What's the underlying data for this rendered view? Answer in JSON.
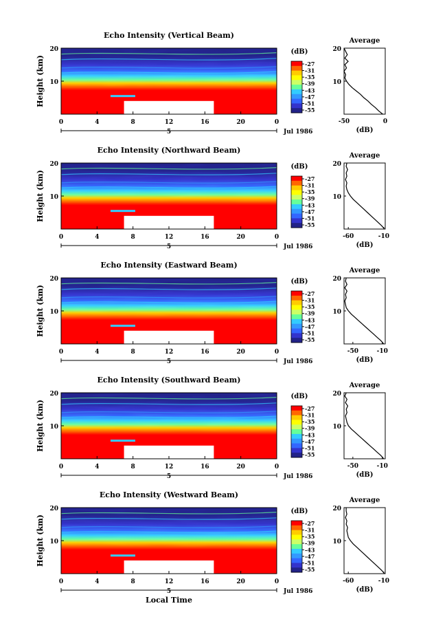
{
  "chart_data": [
    {
      "type": "heatmap",
      "title": "Echo Intensity (Vertical Beam)",
      "ylabel": "Height (km)",
      "ylim": [
        0,
        20
      ],
      "yticks": [
        0,
        10,
        20
      ],
      "xlim": [
        0,
        24
      ],
      "xticks": [
        "0",
        "4",
        "8",
        "12",
        "16",
        "20",
        "0"
      ],
      "date_tick": "5",
      "date_label": "Jul 1986",
      "colorbar": {
        "unit": "(dB)",
        "ticks": [
          "-27",
          "-31",
          "-35",
          "-39",
          "-43",
          "-47",
          "-51",
          "-55"
        ],
        "colors": [
          "#ff0000",
          "#ff6600",
          "#ffcc00",
          "#ffff00",
          "#ccff66",
          "#66ff99",
          "#33ccff",
          "#3399ff",
          "#3366ff",
          "#3333cc",
          "#222288"
        ]
      },
      "data_gap": {
        "x": [
          7,
          17
        ],
        "y": [
          0,
          4
        ]
      },
      "profile": {
        "title": "Average",
        "xlabel": "(dB)",
        "xticks": [
          "-50",
          "0"
        ],
        "yticks": [
          "0",
          "10",
          "20"
        ],
        "xlim": [
          -50,
          0
        ],
        "heights": [
          0,
          1,
          2,
          3,
          4,
          5,
          6,
          7,
          8,
          9,
          10,
          11,
          12,
          13,
          14,
          15,
          16,
          17,
          18,
          19,
          20
        ],
        "values": [
          -3,
          -8,
          -12,
          -17,
          -21,
          -26,
          -30,
          -35,
          -40,
          -44,
          -47,
          -49,
          -48,
          -50,
          -47,
          -49,
          -45,
          -49,
          -46,
          -48,
          -50
        ]
      }
    },
    {
      "type": "heatmap",
      "title": "Echo Intensity (Northward Beam)",
      "ylabel": "Height (km)",
      "ylim": [
        0,
        20
      ],
      "yticks": [
        0,
        10,
        20
      ],
      "xlim": [
        0,
        24
      ],
      "xticks": [
        "0",
        "4",
        "8",
        "12",
        "16",
        "20",
        "0"
      ],
      "date_tick": "5",
      "date_label": "Jul 1986",
      "colorbar": {
        "unit": "(dB)",
        "ticks": [
          "-27",
          "-31",
          "-35",
          "-39",
          "-43",
          "-47",
          "-51",
          "-55"
        ],
        "colors": [
          "#ff0000",
          "#ff6600",
          "#ffcc00",
          "#ffff00",
          "#ccff66",
          "#66ff99",
          "#33ccff",
          "#3399ff",
          "#3366ff",
          "#3333cc",
          "#222288"
        ]
      },
      "data_gap": {
        "x": [
          7,
          17
        ],
        "y": [
          0,
          4
        ]
      },
      "profile": {
        "title": "Average",
        "xlabel": "(dB)",
        "xticks": [
          "-60",
          "-10"
        ],
        "yticks": [
          "0",
          "10",
          "20"
        ],
        "xlim": [
          -66,
          -8
        ],
        "heights": [
          0,
          1,
          2,
          3,
          4,
          5,
          6,
          7,
          8,
          9,
          10,
          11,
          12,
          13,
          14,
          15,
          16,
          17,
          18,
          19,
          20
        ],
        "values": [
          -9,
          -13,
          -18,
          -23,
          -28,
          -33,
          -38,
          -43,
          -48,
          -53,
          -57,
          -60,
          -62,
          -63,
          -62,
          -64,
          -62,
          -63,
          -61,
          -63,
          -62
        ]
      }
    },
    {
      "type": "heatmap",
      "title": "Echo Intensity (Eastward Beam)",
      "ylabel": "Height (km)",
      "ylim": [
        0,
        20
      ],
      "yticks": [
        0,
        10,
        20
      ],
      "xlim": [
        0,
        24
      ],
      "xticks": [
        "0",
        "4",
        "8",
        "12",
        "16",
        "20",
        "0"
      ],
      "date_tick": "5",
      "date_label": "Jul 1986",
      "colorbar": {
        "unit": "(dB)",
        "ticks": [
          "-27",
          "-31",
          "-35",
          "-39",
          "-43",
          "-47",
          "-51",
          "-55"
        ],
        "colors": [
          "#ff0000",
          "#ff6600",
          "#ffcc00",
          "#ffff00",
          "#ccff66",
          "#66ff99",
          "#33ccff",
          "#3399ff",
          "#3366ff",
          "#3333cc",
          "#222288"
        ]
      },
      "data_gap": {
        "x": [
          7,
          17
        ],
        "y": [
          0,
          4
        ]
      },
      "profile": {
        "title": "Average",
        "xlabel": "(dB)",
        "xticks": [
          "-50",
          "-10"
        ],
        "yticks": [
          "0",
          "10",
          "20"
        ],
        "xlim": [
          -62,
          -6
        ],
        "heights": [
          0,
          1,
          2,
          3,
          4,
          5,
          6,
          7,
          8,
          9,
          10,
          11,
          12,
          13,
          14,
          15,
          16,
          17,
          18,
          19,
          20
        ],
        "values": [
          -8,
          -12,
          -17,
          -22,
          -27,
          -32,
          -37,
          -42,
          -47,
          -52,
          -56,
          -59,
          -60,
          -61,
          -59,
          -60,
          -58,
          -61,
          -58,
          -60,
          -59
        ]
      }
    },
    {
      "type": "heatmap",
      "title": "Echo Intensity (Southward Beam)",
      "ylabel": "Height (km)",
      "ylim": [
        0,
        20
      ],
      "yticks": [
        0,
        10,
        20
      ],
      "xlim": [
        0,
        24
      ],
      "xticks": [
        "0",
        "4",
        "8",
        "12",
        "16",
        "20",
        "0"
      ],
      "date_tick": "5",
      "date_label": "Jul 1986",
      "colorbar": {
        "unit": "(dB)",
        "ticks": [
          "-27",
          "-31",
          "-35",
          "-39",
          "-43",
          "-47",
          "-51",
          "-55"
        ],
        "colors": [
          "#ff0000",
          "#ff6600",
          "#ffcc00",
          "#ffff00",
          "#ccff66",
          "#66ff99",
          "#33ccff",
          "#3399ff",
          "#3366ff",
          "#3333cc",
          "#222288"
        ]
      },
      "data_gap": {
        "x": [
          7,
          17
        ],
        "y": [
          0,
          4
        ]
      },
      "profile": {
        "title": "Average",
        "xlabel": "(dB)",
        "xticks": [
          "-50",
          "-10"
        ],
        "yticks": [
          "0",
          "10",
          "20"
        ],
        "xlim": [
          -62,
          -6
        ],
        "heights": [
          0,
          1,
          2,
          3,
          4,
          5,
          6,
          7,
          8,
          9,
          10,
          11,
          12,
          13,
          14,
          15,
          16,
          17,
          18,
          19,
          20
        ],
        "values": [
          -8,
          -12,
          -17,
          -22,
          -27,
          -32,
          -37,
          -42,
          -47,
          -52,
          -56,
          -58,
          -59,
          -60,
          -58,
          -59,
          -57,
          -60,
          -58,
          -61,
          -59
        ]
      }
    },
    {
      "type": "heatmap",
      "title": "Echo Intensity (Westward Beam)",
      "ylabel": "Height (km)",
      "ylim": [
        0,
        20
      ],
      "yticks": [
        0,
        10,
        20
      ],
      "xlim": [
        0,
        24
      ],
      "xticks": [
        "0",
        "4",
        "8",
        "12",
        "16",
        "20",
        "0"
      ],
      "date_tick": "5",
      "date_label": "Jul 1986",
      "xlabel": "Local Time",
      "colorbar": {
        "unit": "(dB)",
        "ticks": [
          "-27",
          "-31",
          "-35",
          "-39",
          "-43",
          "-47",
          "-51",
          "-55"
        ],
        "colors": [
          "#ff0000",
          "#ff6600",
          "#ffcc00",
          "#ffff00",
          "#ccff66",
          "#66ff99",
          "#33ccff",
          "#3399ff",
          "#3366ff",
          "#3333cc",
          "#222288"
        ]
      },
      "data_gap": {
        "x": [
          7,
          17
        ],
        "y": [
          0,
          4
        ]
      },
      "profile": {
        "title": "Average",
        "xlabel": "(dB)",
        "xticks": [
          "-60",
          "-10"
        ],
        "yticks": [
          "0",
          "10",
          "20"
        ],
        "xlim": [
          -66,
          -8
        ],
        "heights": [
          0,
          1,
          2,
          3,
          4,
          5,
          6,
          7,
          8,
          9,
          10,
          11,
          12,
          13,
          14,
          15,
          16,
          17,
          18,
          19,
          20
        ],
        "values": [
          -9,
          -13,
          -18,
          -23,
          -28,
          -33,
          -38,
          -43,
          -48,
          -53,
          -57,
          -60,
          -61,
          -62,
          -61,
          -63,
          -62,
          -64,
          -62,
          -63,
          -63
        ]
      }
    }
  ]
}
